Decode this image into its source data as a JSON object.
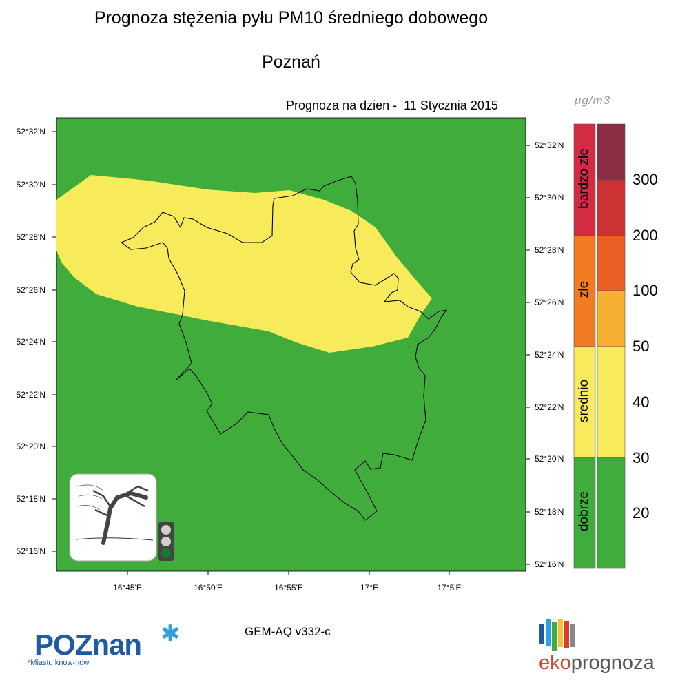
{
  "title": "Prognoza stężenia pyłu PM10 średniego dobowego",
  "city": "Poznań",
  "forecast_date": "Prognoza na dzien -  11 Stycznia 2015",
  "lat_labels": [
    "52°32'N",
    "52°30'N",
    "52°28'N",
    "52°26'N",
    "52°24'N",
    "52°22'N",
    "52°20'N",
    "52°18'N",
    "52°16'N"
  ],
  "lon_labels": [
    "16°45'E",
    "16°50'E",
    "16°55'E",
    "17°E",
    "17°5'E"
  ],
  "unit": "μg/m3",
  "legend": {
    "categories": [
      {
        "label": "bardzo zle",
        "color": "#d42b45"
      },
      {
        "label": "zle",
        "color": "#f07b20"
      },
      {
        "label": "srednio",
        "color": "#f7eb5c"
      },
      {
        "label": "dobrze",
        "color": "#3fac3c"
      }
    ],
    "scale_colors": [
      "#8b2d45",
      "#cc3232",
      "#e96125",
      "#f7b032",
      "#f7eb5c",
      "#3fac3c"
    ],
    "levels": [
      "300",
      "200",
      "100",
      "50",
      "40",
      "30",
      "20"
    ]
  },
  "colors": {
    "background_field": "#3fac3c",
    "plume": "#f7eb5c",
    "boundary": "#000000"
  },
  "model": "GEM-AQ v332-c",
  "logos": {
    "poznan_word": "POZnan",
    "poznan_tagline": "*Miasto know-how",
    "eko_part1": "eko",
    "eko_part2": "prognoza"
  },
  "icons": [
    "wind-tree-icon",
    "traffic-light-icon"
  ]
}
